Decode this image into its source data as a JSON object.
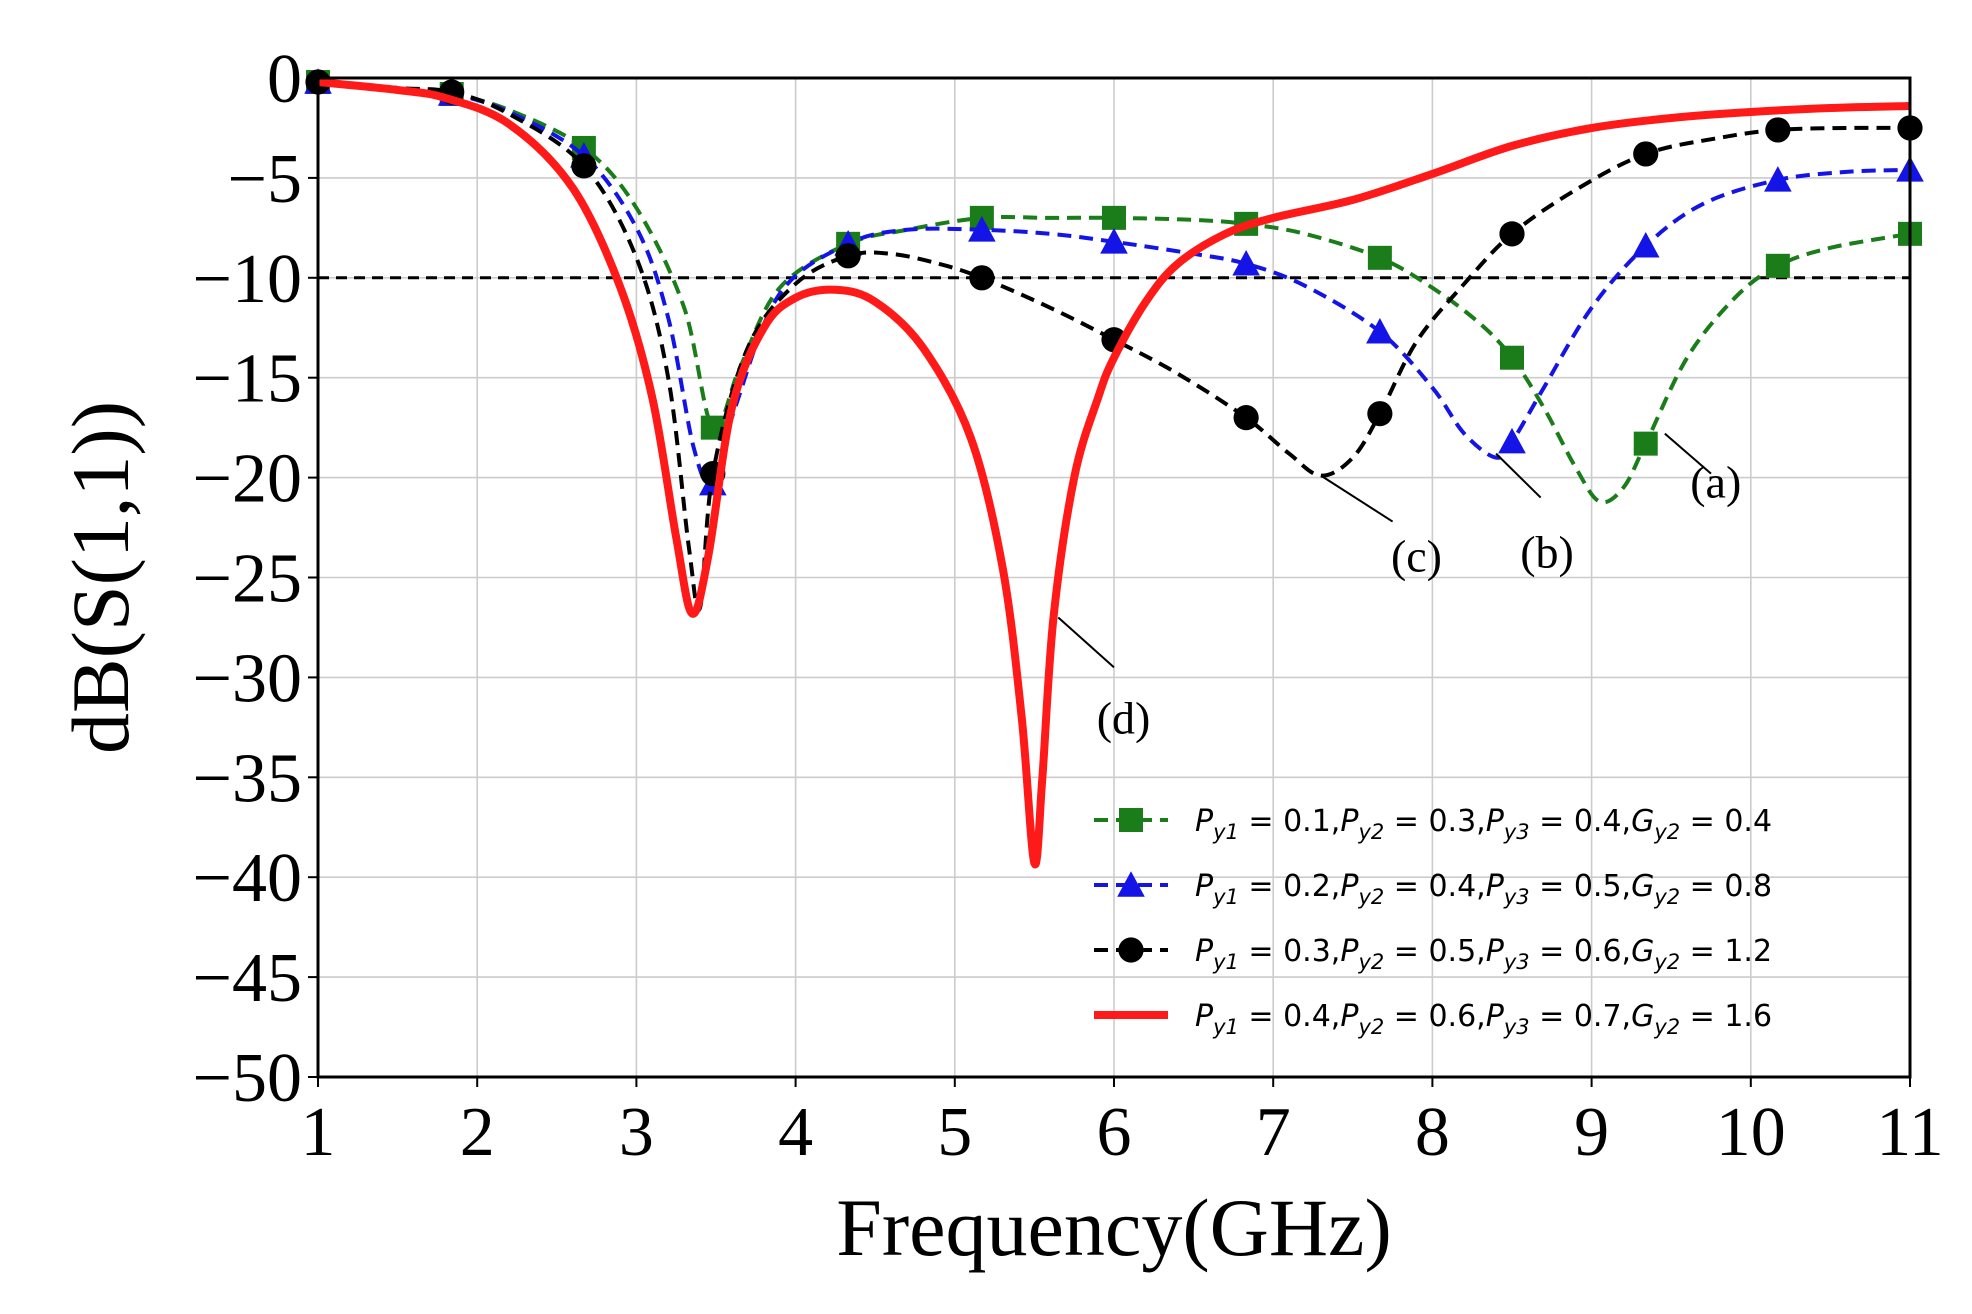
{
  "chart_data": {
    "type": "line",
    "xlabel": "Frequency(GHz)",
    "ylabel": "dB(S(1,1))",
    "xlim": [
      1,
      11
    ],
    "ylim": [
      -50,
      0
    ],
    "x_ticks": [
      1,
      2,
      3,
      4,
      5,
      6,
      7,
      8,
      9,
      10,
      11
    ],
    "y_ticks": [
      0,
      -5,
      -10,
      -15,
      -20,
      -25,
      -30,
      -35,
      -40,
      -45,
      -50
    ],
    "y_tick_labels": [
      "0",
      "−5",
      "−10",
      "−15",
      "−20",
      "−25",
      "−30",
      "−35",
      "−40",
      "−45",
      "−50"
    ],
    "grid": true,
    "reference_line": {
      "y": -10,
      "style": "dashed",
      "color": "#000000"
    },
    "legend_position": "bottom-right",
    "series": [
      {
        "name": "P_y1 = 0.1, P_y2 = 0.3, P_y3 = 0.4, G_y2 = 0.4",
        "legend": {
          "p1": "0.1",
          "p2": "0.3",
          "p3": "0.4",
          "g2": "0.4"
        },
        "color": "#1a7d1a",
        "line_style": "dashed",
        "marker": "square",
        "annotation": "(a)",
        "x": [
          1,
          1.5,
          1.84,
          2.2,
          2.67,
          3.0,
          3.3,
          3.48,
          3.65,
          3.9,
          4.33,
          4.7,
          5.17,
          5.6,
          6.0,
          6.5,
          6.83,
          7.2,
          7.67,
          8.0,
          8.3,
          8.5,
          8.7,
          8.9,
          9.05,
          9.2,
          9.34,
          9.6,
          9.9,
          10.17,
          10.5,
          11
        ],
        "y": [
          -0.2,
          -0.5,
          -0.8,
          -1.6,
          -3.5,
          -6.5,
          -11.5,
          -17.5,
          -14.5,
          -10.5,
          -8.3,
          -7.6,
          -7.0,
          -7.0,
          -7.0,
          -7.1,
          -7.3,
          -7.8,
          -9.0,
          -10.5,
          -12.3,
          -14.0,
          -16.5,
          -19.5,
          -21.2,
          -20.5,
          -18.3,
          -14.0,
          -11.0,
          -9.4,
          -8.5,
          -7.8
        ],
        "marker_x": [
          1,
          1.84,
          2.67,
          3.48,
          4.33,
          5.17,
          6.0,
          6.83,
          7.67,
          8.5,
          9.34,
          10.17,
          11
        ],
        "marker_y": [
          -0.2,
          -0.8,
          -3.5,
          -17.5,
          -8.3,
          -7.0,
          -7.0,
          -7.3,
          -9.0,
          -14.0,
          -18.3,
          -9.4,
          -7.8
        ]
      },
      {
        "name": "P_y1 = 0.2, P_y2 = 0.4, P_y3 = 0.5, G_y2 = 0.8",
        "legend": {
          "p1": "0.2",
          "p2": "0.4",
          "p3": "0.5",
          "g2": "0.8"
        },
        "color": "#1414e6",
        "line_style": "dashed",
        "marker": "triangle",
        "annotation": "(b)",
        "x": [
          1,
          1.5,
          1.84,
          2.2,
          2.67,
          3.0,
          3.2,
          3.36,
          3.48,
          3.62,
          3.9,
          4.33,
          4.7,
          5.17,
          5.6,
          6.0,
          6.5,
          6.83,
          7.2,
          7.67,
          8.0,
          8.2,
          8.4,
          8.5,
          8.7,
          9.0,
          9.34,
          9.7,
          10.17,
          10.6,
          11
        ],
        "y": [
          -0.2,
          -0.5,
          -0.8,
          -1.7,
          -3.9,
          -7.5,
          -12.0,
          -18.5,
          -20.3,
          -16.5,
          -10.8,
          -8.3,
          -7.6,
          -7.6,
          -7.8,
          -8.2,
          -8.8,
          -9.3,
          -10.4,
          -12.7,
          -15.5,
          -17.8,
          -19.0,
          -18.2,
          -15.5,
          -11.5,
          -8.4,
          -6.3,
          -5.1,
          -4.7,
          -4.6
        ],
        "marker_x": [
          1,
          1.84,
          2.67,
          3.48,
          4.33,
          5.17,
          6.0,
          6.83,
          7.67,
          8.5,
          9.34,
          10.17,
          11
        ],
        "marker_y": [
          -0.2,
          -0.8,
          -3.9,
          -20.3,
          -8.3,
          -7.6,
          -8.2,
          -9.3,
          -12.7,
          -18.2,
          -8.4,
          -5.1,
          -4.6
        ]
      },
      {
        "name": "P_y1 = 0.3, P_y2 = 0.5, P_y3 = 0.6, G_y2 = 1.2",
        "legend": {
          "p1": "0.3",
          "p2": "0.5",
          "p3": "0.6",
          "g2": "1.2"
        },
        "color": "#000000",
        "line_style": "dashed",
        "marker": "circle",
        "annotation": "(c)",
        "x": [
          1,
          1.5,
          1.84,
          2.2,
          2.67,
          3.0,
          3.2,
          3.33,
          3.4,
          3.48,
          3.7,
          4.0,
          4.33,
          4.6,
          4.9,
          5.17,
          5.6,
          6.0,
          6.4,
          6.83,
          7.1,
          7.3,
          7.5,
          7.67,
          7.9,
          8.2,
          8.5,
          8.9,
          9.34,
          9.8,
          10.17,
          10.6,
          11
        ],
        "y": [
          -0.2,
          -0.5,
          -0.7,
          -1.8,
          -4.4,
          -9.0,
          -15.0,
          -23.5,
          -26.5,
          -19.8,
          -13.5,
          -10.3,
          -8.9,
          -8.8,
          -9.3,
          -10.0,
          -11.5,
          -13.1,
          -14.8,
          -17.0,
          -18.8,
          -19.9,
          -19.0,
          -16.8,
          -13.2,
          -10.3,
          -7.8,
          -5.6,
          -3.8,
          -3.0,
          -2.6,
          -2.5,
          -2.5
        ],
        "marker_x": [
          1,
          1.84,
          2.67,
          3.48,
          4.33,
          5.17,
          6.0,
          6.83,
          7.67,
          8.5,
          9.34,
          10.17,
          11
        ],
        "marker_y": [
          -0.2,
          -0.7,
          -4.4,
          -19.8,
          -8.9,
          -10.0,
          -13.1,
          -17.0,
          -16.8,
          -7.8,
          -3.8,
          -2.6,
          -2.5
        ]
      },
      {
        "name": "P_y1 = 0.4, P_y2 = 0.6, P_y3 = 0.7, G_y2 = 1.6",
        "legend": {
          "p1": "0.4",
          "p2": "0.6",
          "p3": "0.7",
          "g2": "1.6"
        },
        "color": "#ff1a1a",
        "line_style": "solid",
        "marker": "none",
        "annotation": "(d)",
        "x": [
          1,
          1.5,
          1.8,
          2.2,
          2.6,
          2.9,
          3.1,
          3.25,
          3.35,
          3.45,
          3.6,
          3.8,
          4.0,
          4.25,
          4.5,
          4.8,
          5.1,
          5.3,
          5.42,
          5.5,
          5.55,
          5.62,
          5.75,
          5.9,
          6.0,
          6.2,
          6.4,
          6.7,
          7.0,
          7.5,
          8.0,
          8.5,
          9.0,
          9.5,
          10.0,
          10.5,
          11
        ],
        "y": [
          -0.2,
          -0.6,
          -1.0,
          -2.3,
          -5.5,
          -10.5,
          -16.0,
          -23.0,
          -26.8,
          -24.0,
          -16.5,
          -12.5,
          -11.0,
          -10.6,
          -11.2,
          -13.5,
          -18.0,
          -24.5,
          -32.0,
          -39.3,
          -35.0,
          -27.0,
          -20.0,
          -16.0,
          -14.0,
          -11.2,
          -9.3,
          -7.8,
          -7.0,
          -6.1,
          -4.8,
          -3.4,
          -2.5,
          -2.0,
          -1.7,
          -1.5,
          -1.4
        ]
      }
    ]
  }
}
